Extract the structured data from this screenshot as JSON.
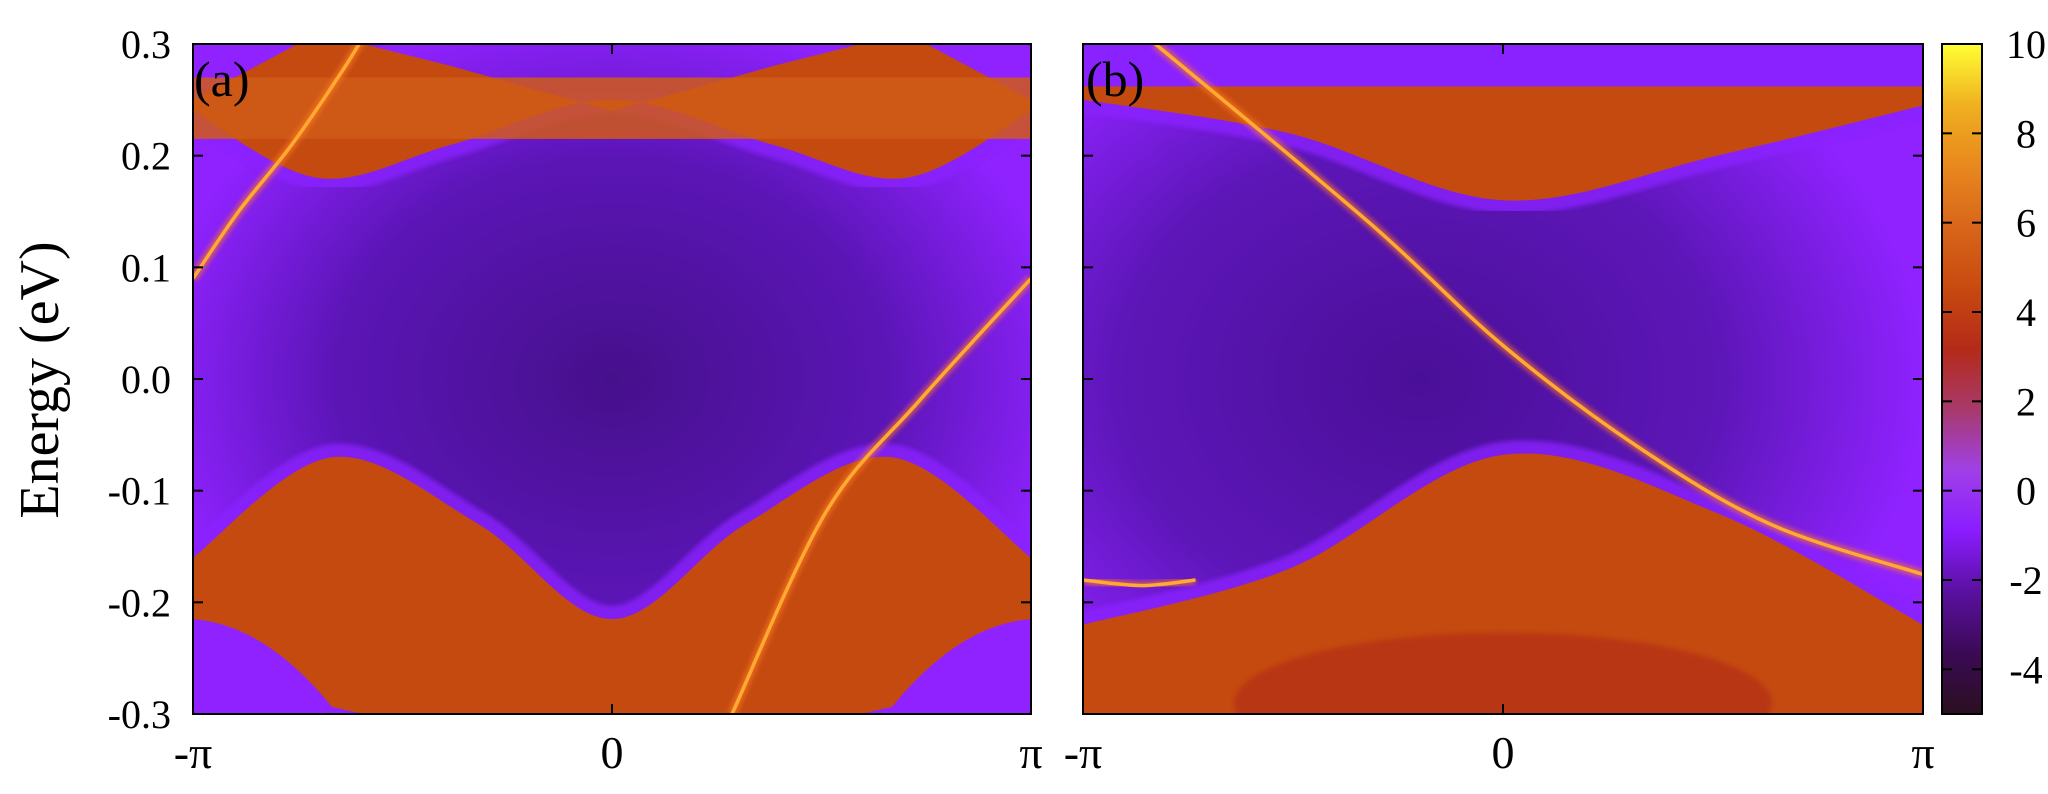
{
  "chart_data": [
    {
      "type": "heatmap",
      "panel_label": "(a)",
      "ylabel": "Energy (eV)",
      "x_ticks": [
        "-π",
        "0",
        "π"
      ],
      "x_range": [
        -3.1416,
        3.1416
      ],
      "y_ticks": [
        "0.3",
        "0.2",
        "0.1",
        "0.0",
        "-0.1",
        "-0.2",
        "-0.3"
      ],
      "ylim": [
        -0.3,
        0.3
      ],
      "bands": {
        "upper_bulk_edge": [
          {
            "k": -3.1416,
            "e": 0.24
          },
          {
            "k": -2.2,
            "e": 0.18
          },
          {
            "k": -1.2,
            "e": 0.21
          },
          {
            "k": 0.0,
            "e": 0.25
          },
          {
            "k": 1.2,
            "e": 0.21
          },
          {
            "k": 2.2,
            "e": 0.18
          },
          {
            "k": 3.1416,
            "e": 0.24
          }
        ],
        "upper_bulk_flat": {
          "e_bottom": 0.215,
          "e_top": 0.27
        },
        "lower_bulk_edge": [
          {
            "k": -3.1416,
            "e": -0.16
          },
          {
            "k": -2.1,
            "e": -0.07
          },
          {
            "k": -1.0,
            "e": -0.13
          },
          {
            "k": 0.0,
            "e": -0.215
          },
          {
            "k": 1.0,
            "e": -0.13
          },
          {
            "k": 2.1,
            "e": -0.07
          },
          {
            "k": 3.1416,
            "e": -0.16
          }
        ],
        "lower_pocket_edge": [
          {
            "k": -3.1416,
            "e": -0.215
          },
          {
            "k": -2.1,
            "e": -0.29
          },
          {
            "k": 2.1,
            "e": -0.29
          },
          {
            "k": 3.1416,
            "e": -0.215
          }
        ],
        "surface_states": [
          [
            {
              "k": -3.1416,
              "e": 0.09
            },
            {
              "k": -2.8,
              "e": 0.15
            },
            {
              "k": -2.4,
              "e": 0.21
            },
            {
              "k": -2.0,
              "e": 0.28
            },
            {
              "k": -1.8,
              "e": 0.32
            }
          ],
          [
            {
              "k": 0.9,
              "e": -0.3
            },
            {
              "k": 1.6,
              "e": -0.12
            },
            {
              "k": 2.3,
              "e": -0.02
            },
            {
              "k": 3.1416,
              "e": 0.09
            }
          ]
        ]
      }
    },
    {
      "type": "heatmap",
      "panel_label": "(b)",
      "x_ticks": [
        "-π",
        "0",
        "π"
      ],
      "x_range": [
        -3.1416,
        3.1416
      ],
      "ylim": [
        -0.3,
        0.3
      ],
      "bands": {
        "upper_bulk_edge": [
          {
            "k": -3.1416,
            "e": 0.25
          },
          {
            "k": -1.6,
            "e": 0.22
          },
          {
            "k": 0.0,
            "e": 0.16
          },
          {
            "k": 1.6,
            "e": 0.2
          },
          {
            "k": 3.1416,
            "e": 0.245
          }
        ],
        "lower_bulk_edge": [
          {
            "k": -3.1416,
            "e": -0.22
          },
          {
            "k": -1.6,
            "e": -0.17
          },
          {
            "k": 0.0,
            "e": -0.068
          },
          {
            "k": 1.6,
            "e": -0.12
          },
          {
            "k": 3.1416,
            "e": -0.22
          }
        ],
        "surface_states": [
          [
            {
              "k": -2.6,
              "e": 0.3
            },
            {
              "k": -1.0,
              "e": 0.14
            },
            {
              "k": 0.0,
              "e": 0.03
            },
            {
              "k": 1.0,
              "e": -0.06
            },
            {
              "k": 2.0,
              "e": -0.13
            },
            {
              "k": 3.1416,
              "e": -0.175
            }
          ],
          [
            {
              "k": -3.1416,
              "e": -0.18
            },
            {
              "k": -2.7,
              "e": -0.185
            },
            {
              "k": -2.3,
              "e": -0.18
            }
          ]
        ]
      }
    }
  ],
  "colorbar": {
    "ticks": [
      "10",
      "8",
      "6",
      "4",
      "2",
      "0",
      "-2",
      "-4"
    ],
    "range": [
      -5,
      10
    ],
    "colors": [
      "#2a1020",
      "#3b0a55",
      "#5a10a0",
      "#8a1cff",
      "#a040e8",
      "#a83a6a",
      "#b42a18",
      "#c84a10",
      "#d8661a",
      "#e8881e",
      "#f0b020",
      "#ffff33"
    ]
  },
  "palette": {
    "gap": "#5a12b0",
    "gap_center": "#4a0e96",
    "near_band": "#8a24ff",
    "bulk": "#c44a10",
    "bulk_dark": "#b02818",
    "surface": "#ffaa30"
  }
}
